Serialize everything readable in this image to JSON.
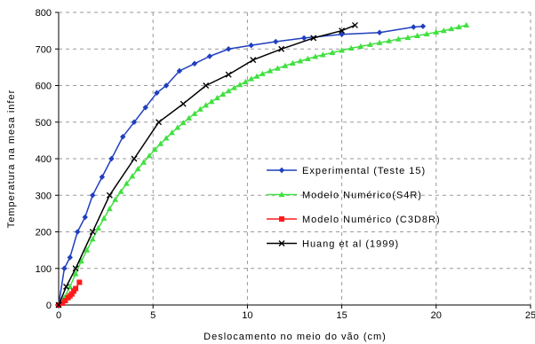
{
  "chart_data": {
    "type": "line",
    "title": "",
    "xlabel": "Deslocamento no meio do vão (cm)",
    "ylabel": "Temperatura na mesa infer",
    "xlim": [
      0,
      25
    ],
    "ylim": [
      0,
      800
    ],
    "xticks": [
      0,
      5,
      10,
      15,
      20,
      25
    ],
    "yticks": [
      0,
      100,
      200,
      300,
      400,
      500,
      600,
      700,
      800
    ],
    "grid": true,
    "legend_position": "right",
    "series": [
      {
        "name": "Experimental (Teste 15)",
        "color": "#1f3fbf",
        "marker": "diamond",
        "x": [
          0,
          0.3,
          0.6,
          1.0,
          1.4,
          1.8,
          2.3,
          2.8,
          3.4,
          4.0,
          4.6,
          5.2,
          5.7,
          6.4,
          7.2,
          8.0,
          9.0,
          10.2,
          11.5,
          13.0,
          15.0,
          17.0,
          18.8,
          19.3
        ],
        "y": [
          0,
          100,
          130,
          200,
          240,
          300,
          350,
          400,
          460,
          500,
          540,
          580,
          600,
          640,
          660,
          680,
          700,
          710,
          720,
          730,
          740,
          745,
          760,
          762
        ]
      },
      {
        "name": "Modelo Numérico(S4R)",
        "color": "#40e040",
        "marker": "triangle",
        "x": [
          0,
          0.3,
          0.6,
          0.9,
          1.2,
          1.5,
          1.8,
          2.1,
          2.4,
          2.7,
          3.0,
          3.3,
          3.6,
          3.9,
          4.2,
          4.5,
          4.8,
          5.1,
          5.4,
          5.7,
          6.0,
          6.3,
          6.6,
          6.9,
          7.2,
          7.5,
          7.8,
          8.1,
          8.4,
          8.7,
          9.0,
          9.3,
          9.6,
          9.9,
          10.2,
          10.5,
          10.8,
          11.2,
          11.6,
          12.0,
          12.4,
          12.8,
          13.2,
          13.6,
          14.0,
          14.5,
          15.0,
          15.5,
          16.0,
          16.5,
          17.0,
          17.5,
          18.0,
          18.5,
          19.0,
          19.5,
          20.0,
          20.4,
          20.8,
          21.2,
          21.6
        ],
        "y": [
          0,
          20,
          50,
          85,
          120,
          150,
          180,
          210,
          237,
          263,
          288,
          310,
          332,
          352,
          372,
          390,
          408,
          425,
          441,
          456,
          471,
          485,
          498,
          511,
          523,
          535,
          546,
          556,
          566,
          576,
          585,
          594,
          602,
          610,
          618,
          625,
          632,
          640,
          647,
          654,
          661,
          667,
          673,
          679,
          684,
          690,
          696,
          702,
          707,
          712,
          717,
          722,
          727,
          731,
          736,
          741,
          746,
          750,
          755,
          760,
          765
        ]
      },
      {
        "name": "Modelo Numérico (C3D8R)",
        "color": "#ff1a1a",
        "marker": "square",
        "x": [
          0,
          0.2,
          0.35,
          0.5,
          0.6,
          0.7,
          0.8,
          0.9,
          1.1
        ],
        "y": [
          0,
          5,
          12,
          20,
          25,
          30,
          38,
          45,
          62
        ]
      },
      {
        "name": "Huang et al (1999)",
        "color": "#000000",
        "marker": "x",
        "x": [
          0,
          0.4,
          0.9,
          1.8,
          2.7,
          4.0,
          5.3,
          6.6,
          7.8,
          9.0,
          10.3,
          11.8,
          13.5,
          15.0,
          15.7
        ],
        "y": [
          0,
          50,
          100,
          200,
          300,
          400,
          500,
          550,
          600,
          630,
          670,
          700,
          730,
          750,
          765
        ]
      }
    ]
  }
}
